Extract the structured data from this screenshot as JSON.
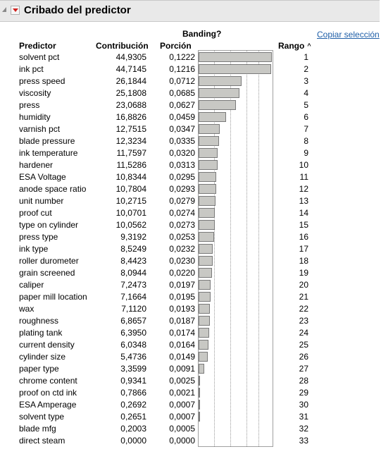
{
  "title": "Cribado del predictor",
  "banding_label": "Banding?",
  "copy_selection_label": "Copiar selección",
  "columns": {
    "predictor": "Predictor",
    "contribution": "Contribución",
    "share": "Porción",
    "rank": "Rango"
  },
  "rank_sort_icon": "^",
  "icons": {
    "collapse": "disclosure-triangle-icon",
    "menu": "red-dropdown-menu-icon"
  },
  "rows": [
    {
      "predictor": "solvent pct",
      "contribution": "44,9305",
      "share": "0,1222",
      "share_value": 0.1222,
      "rank": "1"
    },
    {
      "predictor": "ink pct",
      "contribution": "44,7145",
      "share": "0,1216",
      "share_value": 0.1216,
      "rank": "2"
    },
    {
      "predictor": "press speed",
      "contribution": "26,1844",
      "share": "0,0712",
      "share_value": 0.0712,
      "rank": "3"
    },
    {
      "predictor": "viscosity",
      "contribution": "25,1808",
      "share": "0,0685",
      "share_value": 0.0685,
      "rank": "4"
    },
    {
      "predictor": "press",
      "contribution": "23,0688",
      "share": "0,0627",
      "share_value": 0.0627,
      "rank": "5"
    },
    {
      "predictor": "humidity",
      "contribution": "16,8826",
      "share": "0,0459",
      "share_value": 0.0459,
      "rank": "6"
    },
    {
      "predictor": "varnish pct",
      "contribution": "12,7515",
      "share": "0,0347",
      "share_value": 0.0347,
      "rank": "7"
    },
    {
      "predictor": "blade pressure",
      "contribution": "12,3234",
      "share": "0,0335",
      "share_value": 0.0335,
      "rank": "8"
    },
    {
      "predictor": "ink temperature",
      "contribution": "11,7597",
      "share": "0,0320",
      "share_value": 0.032,
      "rank": "9"
    },
    {
      "predictor": "hardener",
      "contribution": "11,5286",
      "share": "0,0313",
      "share_value": 0.0313,
      "rank": "10"
    },
    {
      "predictor": "ESA Voltage",
      "contribution": "10,8344",
      "share": "0,0295",
      "share_value": 0.0295,
      "rank": "11"
    },
    {
      "predictor": "anode space ratio",
      "contribution": "10,7804",
      "share": "0,0293",
      "share_value": 0.0293,
      "rank": "12"
    },
    {
      "predictor": "unit number",
      "contribution": "10,2715",
      "share": "0,0279",
      "share_value": 0.0279,
      "rank": "13"
    },
    {
      "predictor": "proof cut",
      "contribution": "10,0701",
      "share": "0,0274",
      "share_value": 0.0274,
      "rank": "14"
    },
    {
      "predictor": "type on cylinder",
      "contribution": "10,0562",
      "share": "0,0273",
      "share_value": 0.0273,
      "rank": "15"
    },
    {
      "predictor": "press type",
      "contribution": "9,3192",
      "share": "0,0253",
      "share_value": 0.0253,
      "rank": "16"
    },
    {
      "predictor": "ink type",
      "contribution": "8,5249",
      "share": "0,0232",
      "share_value": 0.0232,
      "rank": "17"
    },
    {
      "predictor": "roller durometer",
      "contribution": "8,4423",
      "share": "0,0230",
      "share_value": 0.023,
      "rank": "18"
    },
    {
      "predictor": "grain screened",
      "contribution": "8,0944",
      "share": "0,0220",
      "share_value": 0.022,
      "rank": "19"
    },
    {
      "predictor": "caliper",
      "contribution": "7,2473",
      "share": "0,0197",
      "share_value": 0.0197,
      "rank": "20"
    },
    {
      "predictor": "paper mill location",
      "contribution": "7,1664",
      "share": "0,0195",
      "share_value": 0.0195,
      "rank": "21"
    },
    {
      "predictor": "wax",
      "contribution": "7,1120",
      "share": "0,0193",
      "share_value": 0.0193,
      "rank": "22"
    },
    {
      "predictor": "roughness",
      "contribution": "6,8657",
      "share": "0,0187",
      "share_value": 0.0187,
      "rank": "23"
    },
    {
      "predictor": "plating tank",
      "contribution": "6,3950",
      "share": "0,0174",
      "share_value": 0.0174,
      "rank": "24"
    },
    {
      "predictor": "current density",
      "contribution": "6,0348",
      "share": "0,0164",
      "share_value": 0.0164,
      "rank": "25"
    },
    {
      "predictor": "cylinder size",
      "contribution": "5,4736",
      "share": "0,0149",
      "share_value": 0.0149,
      "rank": "26"
    },
    {
      "predictor": "paper type",
      "contribution": "3,3599",
      "share": "0,0091",
      "share_value": 0.0091,
      "rank": "27"
    },
    {
      "predictor": "chrome content",
      "contribution": "0,9341",
      "share": "0,0025",
      "share_value": 0.0025,
      "rank": "28"
    },
    {
      "predictor": "proof on ctd ink",
      "contribution": "0,7866",
      "share": "0,0021",
      "share_value": 0.0021,
      "rank": "29"
    },
    {
      "predictor": "ESA Amperage",
      "contribution": "0,2692",
      "share": "0,0007",
      "share_value": 0.0007,
      "rank": "30"
    },
    {
      "predictor": "solvent type",
      "contribution": "0,2651",
      "share": "0,0007",
      "share_value": 0.0007,
      "rank": "31"
    },
    {
      "predictor": "blade mfg",
      "contribution": "0,2003",
      "share": "0,0005",
      "share_value": 0.0005,
      "rank": "32"
    },
    {
      "predictor": "direct steam",
      "contribution": "0,0000",
      "share": "0,0000",
      "share_value": 0.0,
      "rank": "33"
    }
  ]
}
